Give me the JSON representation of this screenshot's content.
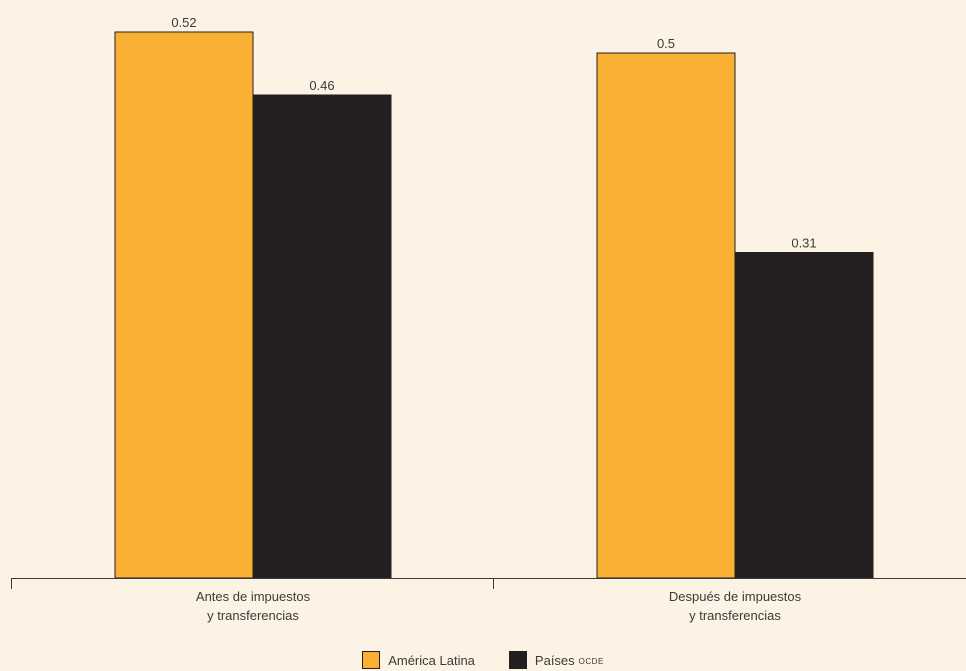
{
  "colors": {
    "background": "#fdf3e4",
    "america_latina": "#f9b033",
    "paises_ocde": "#231f20",
    "axis": "#3a3a3a",
    "text": "#3a3a3a"
  },
  "legend": {
    "america_latina": "América Latina",
    "paises": "Países",
    "paises_suffix": "OCDE"
  },
  "chart_data": {
    "type": "bar",
    "title": "",
    "xlabel": "",
    "ylabel": "",
    "categories": [
      [
        "Antes de impuestos",
        "y transferencias"
      ],
      [
        "Después de impuestos",
        "y transferencias"
      ]
    ],
    "series": [
      {
        "name": "América Latina",
        "values": [
          0.52,
          0.5
        ],
        "color": "#f9b033"
      },
      {
        "name": "Países OCDE",
        "values": [
          0.46,
          0.31
        ],
        "color": "#231f20"
      }
    ],
    "value_labels": [
      [
        "0.52",
        "0.5"
      ],
      [
        "0.46",
        "0.31"
      ]
    ],
    "ylim": [
      0,
      0.52
    ],
    "grid": false,
    "legend_position": "bottom-center"
  }
}
